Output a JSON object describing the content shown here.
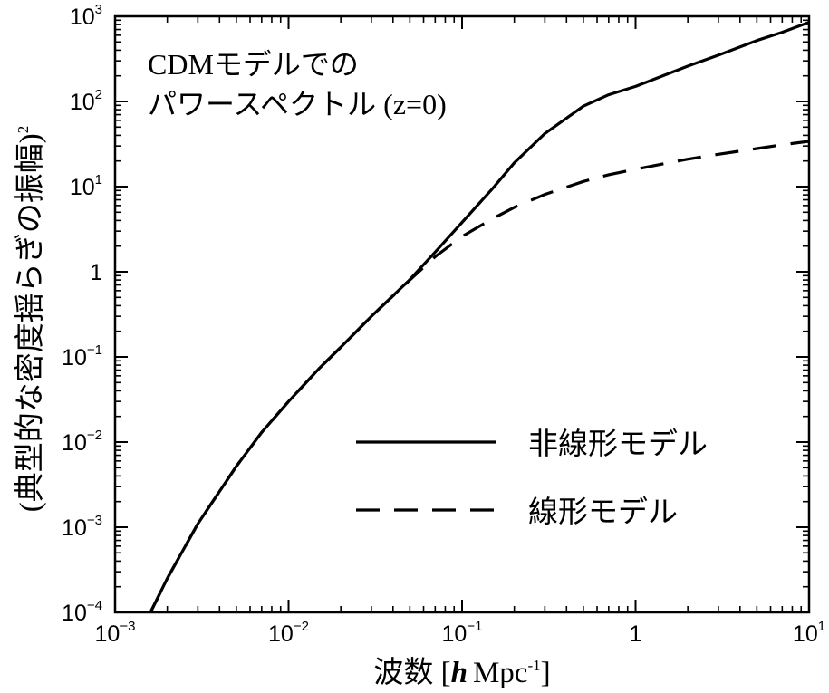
{
  "chart_data": {
    "type": "line",
    "x_scale": "log",
    "y_scale": "log",
    "xlim": [
      0.001,
      10
    ],
    "ylim": [
      0.0001,
      1000
    ],
    "x_ticks": [
      {
        "value": 0.001,
        "base": "10",
        "exp": "−3"
      },
      {
        "value": 0.01,
        "base": "10",
        "exp": "−2"
      },
      {
        "value": 0.1,
        "base": "10",
        "exp": "−1"
      },
      {
        "value": 1,
        "base": "1",
        "exp": ""
      },
      {
        "value": 10,
        "base": "10",
        "exp": "1"
      }
    ],
    "y_ticks": [
      {
        "value": 0.0001,
        "base": "10",
        "exp": "−4"
      },
      {
        "value": 0.001,
        "base": "10",
        "exp": "−3"
      },
      {
        "value": 0.01,
        "base": "10",
        "exp": "−2"
      },
      {
        "value": 0.1,
        "base": "10",
        "exp": "−1"
      },
      {
        "value": 1,
        "base": "1",
        "exp": ""
      },
      {
        "value": 10,
        "base": "10",
        "exp": "1"
      },
      {
        "value": 100,
        "base": "10",
        "exp": "2"
      },
      {
        "value": 1000,
        "base": "10",
        "exp": "3"
      }
    ],
    "xlabel": {
      "prefix": "波数 [",
      "italic": "h",
      "unit": "Mpc",
      "exp": "-1",
      "suffix": "]"
    },
    "ylabel": {
      "text": "(典型的な密度揺らぎの振幅)",
      "exp": "2"
    },
    "annotation": [
      "CDMモデルでの",
      "パワースペクトル (z=0)"
    ],
    "legend_position": "center-right",
    "series": [
      {
        "name": "非線形モデル",
        "style": "solid",
        "x": [
          0.0016,
          0.002,
          0.003,
          0.005,
          0.007,
          0.01,
          0.015,
          0.02,
          0.03,
          0.05,
          0.07,
          0.1,
          0.15,
          0.2,
          0.3,
          0.5,
          0.7,
          1,
          2,
          3,
          5,
          7,
          10
        ],
        "y": [
          0.0001,
          0.00025,
          0.0011,
          0.0052,
          0.013,
          0.03,
          0.073,
          0.13,
          0.3,
          0.81,
          1.7,
          3.8,
          9.5,
          19,
          42,
          88,
          120,
          150,
          260,
          350,
          520,
          650,
          850
        ]
      },
      {
        "name": "線形モデル",
        "style": "dashed",
        "x": [
          0.0016,
          0.002,
          0.003,
          0.005,
          0.007,
          0.01,
          0.015,
          0.02,
          0.03,
          0.05,
          0.07,
          0.1,
          0.15,
          0.2,
          0.3,
          0.5,
          0.7,
          1,
          2,
          3,
          5,
          7,
          10
        ],
        "y": [
          0.0001,
          0.00025,
          0.0011,
          0.0052,
          0.013,
          0.03,
          0.073,
          0.13,
          0.3,
          0.8,
          1.5,
          2.6,
          4.2,
          5.7,
          8.1,
          11.5,
          13.8,
          16,
          21,
          24,
          28,
          31,
          34
        ]
      }
    ]
  }
}
